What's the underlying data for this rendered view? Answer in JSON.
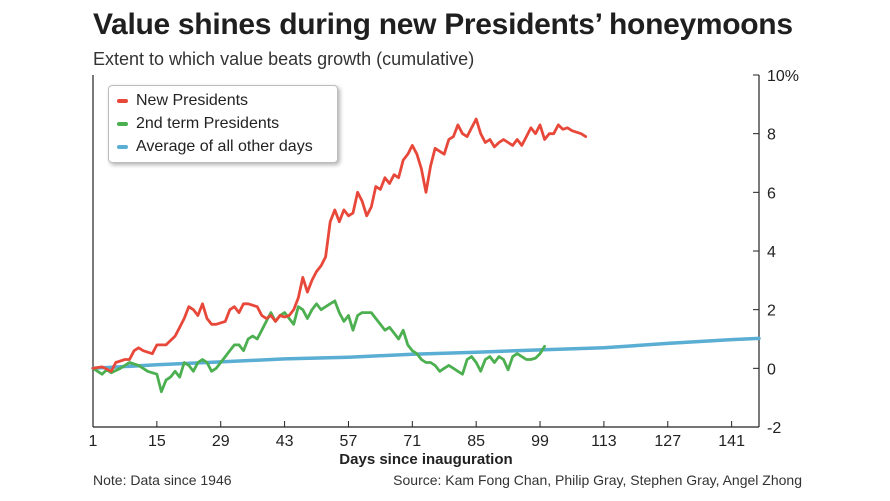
{
  "header": {
    "title": "Value shines during new Presidents’ honeymoons",
    "subtitle": "Extent to which value beats growth (cumulative)"
  },
  "footer": {
    "note": "Note: Data since 1946",
    "source": "Source: Kam Fong Chan, Philip Gray, Stephen Gray, Angel Zhong"
  },
  "chart_data": {
    "type": "line",
    "title": "Value shines during new Presidents’ honeymoons",
    "subtitle": "Extent to which value beats growth (cumulative)",
    "xlabel": "Days since inauguration",
    "ylabel": "",
    "xlim": [
      1,
      147
    ],
    "ylim": [
      -2,
      10
    ],
    "x_ticks": [
      1,
      15,
      29,
      43,
      57,
      71,
      85,
      99,
      113,
      127,
      141
    ],
    "y_ticks": [
      {
        "value": 10,
        "label": "10%"
      },
      {
        "value": 8,
        "label": "8"
      },
      {
        "value": 6,
        "label": "6"
      },
      {
        "value": 4,
        "label": "4"
      },
      {
        "value": 2,
        "label": "2"
      },
      {
        "value": 0,
        "label": "0"
      },
      {
        "value": -2,
        "label": "-2"
      }
    ],
    "grid": "none",
    "legend_position": "top-left",
    "series": [
      {
        "name": "New Presidents",
        "color": "#e8483a",
        "points": [
          [
            1,
            0.0
          ],
          [
            3,
            0.05
          ],
          [
            5,
            -0.1
          ],
          [
            6,
            0.2
          ],
          [
            8,
            0.3
          ],
          [
            9,
            0.3
          ],
          [
            10,
            0.6
          ],
          [
            11,
            0.7
          ],
          [
            12,
            0.6
          ],
          [
            14,
            0.5
          ],
          [
            15,
            0.8
          ],
          [
            17,
            0.8
          ],
          [
            19,
            1.1
          ],
          [
            20,
            1.4
          ],
          [
            21,
            1.7
          ],
          [
            22,
            2.1
          ],
          [
            23,
            2.0
          ],
          [
            24,
            1.8
          ],
          [
            25,
            2.2
          ],
          [
            26,
            1.7
          ],
          [
            27,
            1.5
          ],
          [
            28,
            1.5
          ],
          [
            30,
            1.6
          ],
          [
            31,
            2.0
          ],
          [
            32,
            2.1
          ],
          [
            33,
            1.9
          ],
          [
            34,
            2.2
          ],
          [
            35,
            2.2
          ],
          [
            37,
            2.1
          ],
          [
            38,
            1.8
          ],
          [
            39,
            1.7
          ],
          [
            40,
            1.8
          ],
          [
            41,
            1.6
          ],
          [
            42,
            1.8
          ],
          [
            43,
            1.75
          ],
          [
            44,
            1.8
          ],
          [
            45,
            2.0
          ],
          [
            46,
            2.4
          ],
          [
            47,
            3.1
          ],
          [
            48,
            2.6
          ],
          [
            49,
            3.0
          ],
          [
            50,
            3.3
          ],
          [
            51,
            3.5
          ],
          [
            52,
            3.8
          ],
          [
            53,
            5.0
          ],
          [
            54,
            5.4
          ],
          [
            55,
            5.0
          ],
          [
            56,
            5.4
          ],
          [
            57,
            5.2
          ],
          [
            58,
            5.3
          ],
          [
            59,
            6.0
          ],
          [
            60,
            5.7
          ],
          [
            61,
            5.2
          ],
          [
            62,
            5.5
          ],
          [
            63,
            6.2
          ],
          [
            64,
            6.1
          ],
          [
            65,
            6.5
          ],
          [
            66,
            6.3
          ],
          [
            67,
            6.6
          ],
          [
            68,
            6.5
          ],
          [
            69,
            7.1
          ],
          [
            70,
            7.3
          ],
          [
            71,
            7.6
          ],
          [
            72,
            7.3
          ],
          [
            73,
            6.8
          ],
          [
            74,
            6.0
          ],
          [
            75,
            6.9
          ],
          [
            76,
            7.5
          ],
          [
            77,
            7.4
          ],
          [
            78,
            7.3
          ],
          [
            79,
            7.8
          ],
          [
            80,
            7.9
          ],
          [
            81,
            8.3
          ],
          [
            82,
            8.0
          ],
          [
            83,
            7.9
          ],
          [
            84,
            8.2
          ],
          [
            85,
            8.5
          ],
          [
            86,
            8.0
          ],
          [
            87,
            7.7
          ],
          [
            88,
            7.8
          ],
          [
            89,
            7.55
          ],
          [
            90,
            7.7
          ],
          [
            91,
            7.8
          ],
          [
            92,
            7.7
          ],
          [
            93,
            7.6
          ],
          [
            94,
            7.8
          ],
          [
            95,
            7.6
          ],
          [
            96,
            7.9
          ],
          [
            97,
            8.2
          ],
          [
            98,
            8.0
          ],
          [
            99,
            8.3
          ],
          [
            100,
            7.8
          ],
          [
            101,
            8.0
          ],
          [
            102,
            8.0
          ],
          [
            103,
            8.3
          ],
          [
            104,
            8.15
          ],
          [
            105,
            8.2
          ],
          [
            106,
            8.1
          ],
          [
            108,
            8.0
          ],
          [
            109,
            7.9
          ]
        ]
      },
      {
        "name": "2nd term Presidents",
        "color": "#4caf50",
        "points": [
          [
            1,
            0.0
          ],
          [
            2,
            -0.1
          ],
          [
            3,
            -0.2
          ],
          [
            4,
            -0.05
          ],
          [
            5,
            -0.15
          ],
          [
            7,
            0.0
          ],
          [
            9,
            0.2
          ],
          [
            11,
            0.1
          ],
          [
            13,
            -0.1
          ],
          [
            15,
            -0.2
          ],
          [
            16,
            -0.8
          ],
          [
            17,
            -0.4
          ],
          [
            18,
            -0.3
          ],
          [
            19,
            -0.1
          ],
          [
            20,
            -0.3
          ],
          [
            21,
            0.2
          ],
          [
            22,
            0.1
          ],
          [
            23,
            -0.1
          ],
          [
            24,
            0.2
          ],
          [
            25,
            0.3
          ],
          [
            26,
            0.2
          ],
          [
            27,
            -0.1
          ],
          [
            28,
            0.0
          ],
          [
            29,
            0.2
          ],
          [
            30,
            0.4
          ],
          [
            31,
            0.6
          ],
          [
            32,
            0.8
          ],
          [
            33,
            0.8
          ],
          [
            34,
            0.6
          ],
          [
            35,
            1.0
          ],
          [
            36,
            1.1
          ],
          [
            37,
            1.0
          ],
          [
            38,
            1.3
          ],
          [
            39,
            1.6
          ],
          [
            40,
            1.9
          ],
          [
            41,
            1.6
          ],
          [
            42,
            1.8
          ],
          [
            43,
            1.9
          ],
          [
            44,
            1.7
          ],
          [
            45,
            1.5
          ],
          [
            46,
            2.1
          ],
          [
            47,
            2.0
          ],
          [
            48,
            1.7
          ],
          [
            49,
            2.0
          ],
          [
            50,
            2.2
          ],
          [
            51,
            2.0
          ],
          [
            52,
            2.1
          ],
          [
            53,
            2.2
          ],
          [
            54,
            2.3
          ],
          [
            55,
            1.9
          ],
          [
            56,
            1.6
          ],
          [
            57,
            1.8
          ],
          [
            58,
            1.3
          ],
          [
            59,
            1.8
          ],
          [
            60,
            1.9
          ],
          [
            61,
            1.9
          ],
          [
            62,
            1.9
          ],
          [
            63,
            1.7
          ],
          [
            64,
            1.5
          ],
          [
            65,
            1.3
          ],
          [
            66,
            1.4
          ],
          [
            67,
            1.2
          ],
          [
            68,
            1.0
          ],
          [
            69,
            1.3
          ],
          [
            70,
            0.8
          ],
          [
            71,
            0.6
          ],
          [
            72,
            0.5
          ],
          [
            73,
            0.3
          ],
          [
            74,
            0.2
          ],
          [
            75,
            0.2
          ],
          [
            76,
            0.1
          ],
          [
            77,
            -0.1
          ],
          [
            78,
            0.0
          ],
          [
            79,
            0.1
          ],
          [
            80,
            0.0
          ],
          [
            81,
            -0.1
          ],
          [
            82,
            -0.2
          ],
          [
            83,
            0.3
          ],
          [
            84,
            0.4
          ],
          [
            85,
            0.2
          ],
          [
            86,
            -0.1
          ],
          [
            87,
            0.3
          ],
          [
            88,
            0.4
          ],
          [
            89,
            0.2
          ],
          [
            90,
            0.4
          ],
          [
            91,
            0.3
          ],
          [
            92,
            -0.05
          ],
          [
            93,
            0.4
          ],
          [
            94,
            0.5
          ],
          [
            95,
            0.4
          ],
          [
            96,
            0.3
          ],
          [
            97,
            0.3
          ],
          [
            98,
            0.35
          ],
          [
            99,
            0.5
          ],
          [
            100,
            0.75
          ]
        ]
      },
      {
        "name": "Average of all other days",
        "color": "#5aaed3",
        "points": [
          [
            1,
            0.0
          ],
          [
            15,
            0.12
          ],
          [
            29,
            0.22
          ],
          [
            43,
            0.32
          ],
          [
            57,
            0.38
          ],
          [
            71,
            0.48
          ],
          [
            85,
            0.55
          ],
          [
            99,
            0.63
          ],
          [
            113,
            0.7
          ],
          [
            127,
            0.85
          ],
          [
            141,
            0.98
          ],
          [
            147,
            1.02
          ]
        ]
      }
    ]
  }
}
